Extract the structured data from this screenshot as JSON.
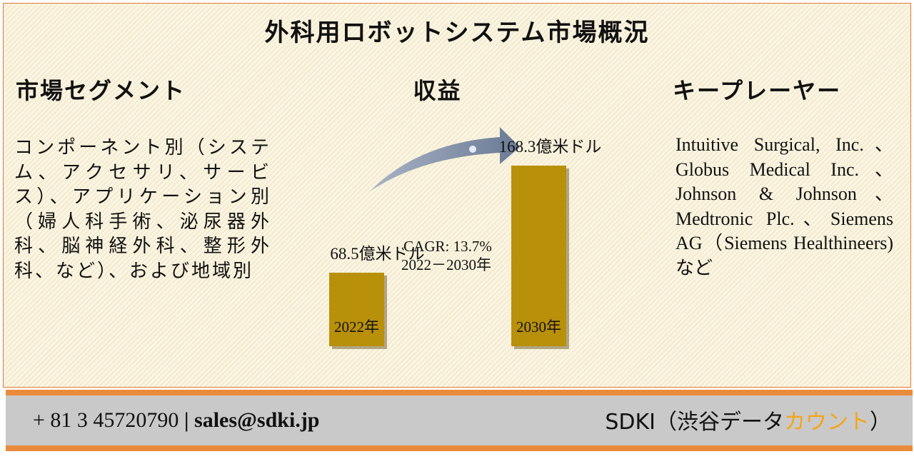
{
  "title": "外科用ロボットシステム市場概況",
  "segments": {
    "heading": "市場セグメント",
    "text": "コンポーネント別（システム、アクセサリ、サービス）、アプリケーション別（婦人科手術、泌尿器外科、脳神経外科、整形外科、など）、および地域別"
  },
  "chart_data": {
    "type": "bar",
    "title": "収益",
    "categories": [
      "2022年",
      "2030年"
    ],
    "values": [
      68.5,
      168.3
    ],
    "value_labels": [
      "68.5億米ドル",
      "168.3億米ドル"
    ],
    "color": "#b8900a",
    "annotations": [
      "CAGR: 13.7%",
      "2022－2030年"
    ]
  },
  "players": {
    "heading": "キープレーヤー",
    "text": "Intuitive Surgical, Inc.、Globus Medical Inc.、Johnson & Johnson、Medtronic Plc.、Siemens AG（Siemens Healthineers)など"
  },
  "footer": {
    "phone": "+ 81 3 45720790",
    "separator": "|",
    "email": "sales@sdki.jp",
    "company": [
      "SDKI（渋谷データ",
      "カウント",
      "）"
    ]
  }
}
